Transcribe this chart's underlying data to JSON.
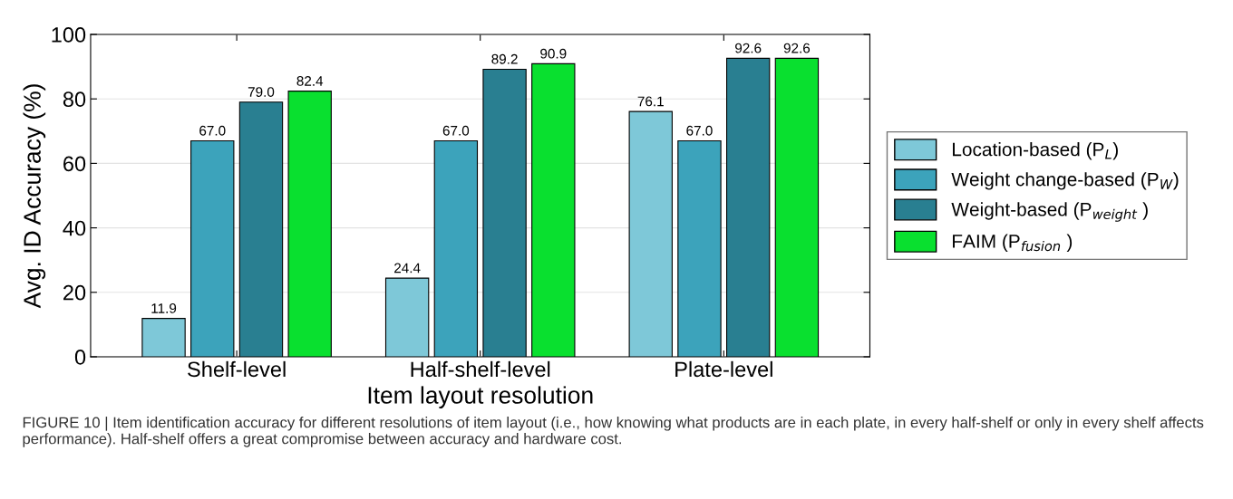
{
  "chart_data": {
    "type": "bar",
    "categories": [
      "Shelf-level",
      "Half-shelf-level",
      "Plate-level"
    ],
    "xlabel": "Item layout resolution",
    "ylabel": "Avg. ID Accuracy (%)",
    "ylim": [
      0,
      100
    ],
    "yticks": [
      0,
      20,
      40,
      60,
      80,
      100
    ],
    "grid": "y",
    "legend": "right",
    "series": [
      {
        "name": "Location-based (P$_{L}$)",
        "color": "#7ec8d8",
        "values": [
          11.9,
          24.4,
          76.1
        ],
        "value_labels": [
          "11.9",
          "24.4",
          "76.1"
        ]
      },
      {
        "name": "Weight change-based (P$_{W}$)",
        "color": "#3ca3bb",
        "values": [
          67.0,
          67.0,
          67.0
        ],
        "value_labels": [
          "67.0",
          "67.0",
          "67.0"
        ]
      },
      {
        "name": "Weight-based (P$_{weight}$ )",
        "color": "#297f91",
        "values": [
          79.0,
          89.2,
          92.6
        ],
        "value_labels": [
          "79.0",
          "89.2",
          "92.6"
        ]
      },
      {
        "name": "FAIM (P$_{fusion}$ )",
        "color": "#09e02f",
        "values": [
          82.4,
          90.9,
          92.6
        ],
        "value_labels": [
          "82.4",
          "90.9",
          "92.6"
        ]
      }
    ],
    "annotations": [
      "FIGURE 10 | Item identification accuracy for different resolutions of item layout (i.e., how knowing what products are in each plate, in every half-shelf or only in every shelf affects performance). Half-shelf offers a great compromise between accuracy and hardware cost."
    ]
  }
}
